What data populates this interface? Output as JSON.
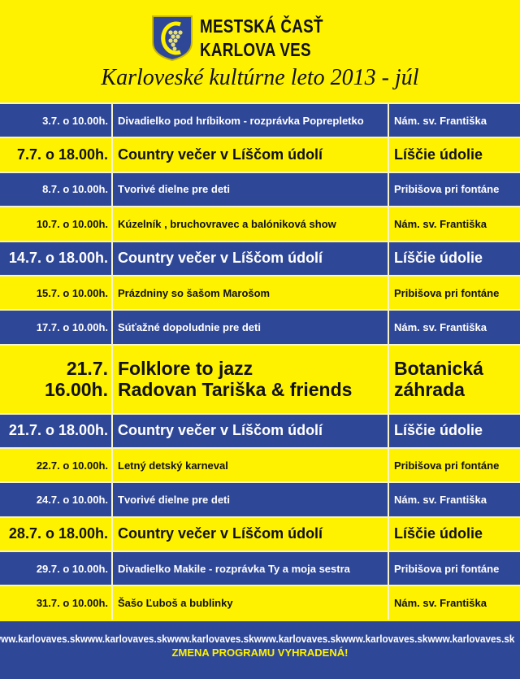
{
  "header": {
    "org_line1": "MESTSKÁ ČASŤ",
    "org_line2": "KARLOVA VES",
    "title": "Karloveské kultúrne leto 2013 - júl",
    "logo_icon": "karlova-ves-coat-of-arms"
  },
  "colors": {
    "blue": "#2f4797",
    "yellow": "#fff200"
  },
  "events": [
    {
      "when": "3.7. o 10.00h.",
      "what": "Divadielko pod hríbikom - rozprávka Poprepletko",
      "where": "Nám. sv. Františka"
    },
    {
      "when": "7.7. o 18.00h.",
      "what": "Country večer v Líščom údolí",
      "where": "Líščie údolie"
    },
    {
      "when": "8.7. o 10.00h.",
      "what": "Tvorivé dielne pre deti",
      "where": "Pribišova pri fontáne"
    },
    {
      "when": "10.7. o 10.00h.",
      "what": "Kúzelník , bruchovravec a balóniková show",
      "where": "Nám. sv. Františka"
    },
    {
      "when": "14.7. o 18.00h.",
      "what": "Country večer v Líščom údolí",
      "where": "Líščie údolie"
    },
    {
      "when": "15.7. o 10.00h.",
      "what": "Prázdniny so šašom Marošom",
      "where": "Pribišova pri fontáne"
    },
    {
      "when": "17.7. o 10.00h.",
      "what": "Súťažné dopoludnie pre deti",
      "where": "Nám. sv. Františka"
    },
    {
      "when_line1": "21.7.",
      "when_line2": "16.00h.",
      "what_line1": "Folklore to jazz",
      "what_line2": "Radovan Tariška & friends",
      "where_line1": "Botanická",
      "where_line2": "záhrada"
    },
    {
      "when": "21.7. o 18.00h.",
      "what": "Country večer v Líščom údolí",
      "where": "Líščie údolie"
    },
    {
      "when": "22.7. o 10.00h.",
      "what": "Letný detský karneval",
      "where": "Pribišova pri fontáne"
    },
    {
      "when": "24.7. o 10.00h.",
      "what": "Tvorivé dielne pre deti",
      "where": "Nám. sv. Františka"
    },
    {
      "when": "28.7. o 18.00h.",
      "what": "Country večer v Líščom údolí",
      "where": "Líščie údolie"
    },
    {
      "when": "29.7. o 10.00h.",
      "what": "Divadielko Makile - rozprávka Ty a moja sestra",
      "where": "Pribišova pri fontáne"
    },
    {
      "when": "31.7. o 10.00h.",
      "what": "Šašo Ľuboš a bublinky",
      "where": "Nám. sv. Františka"
    }
  ],
  "footer": {
    "url": "www.karlovaves.sk",
    "note": "ZMENA PROGRAMU VYHRADENÁ!"
  }
}
